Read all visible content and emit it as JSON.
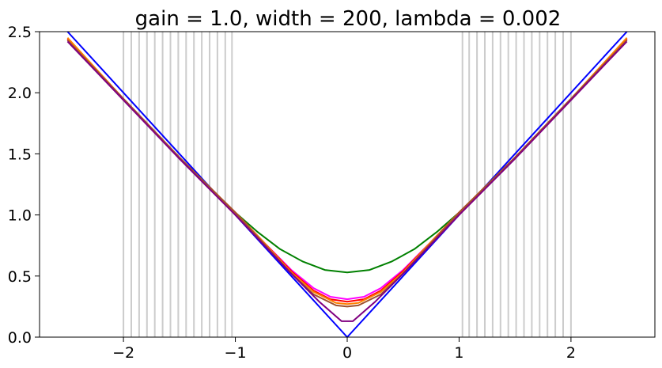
{
  "chart_data": {
    "type": "line",
    "title": "gain = 1.0, width = 200, lambda = 0.002",
    "xlabel": "",
    "ylabel": "",
    "xlim": [
      -2.75,
      2.75
    ],
    "ylim": [
      0.0,
      2.5
    ],
    "x_ticks": [
      -2,
      -1,
      0,
      1,
      2
    ],
    "x_tick_labels": [
      "−2",
      "−1",
      "0",
      "1",
      "2"
    ],
    "y_ticks": [
      0.0,
      0.5,
      1.0,
      1.5,
      2.0,
      2.5
    ],
    "y_tick_labels": [
      "0.0",
      "0.5",
      "1.0",
      "1.5",
      "2.0",
      "2.5"
    ],
    "grid": false,
    "legend": "none",
    "vertical_lines": {
      "color": "#cccccc",
      "x": [
        -2.0,
        -1.93,
        -1.86,
        -1.79,
        -1.72,
        -1.65,
        -1.58,
        -1.51,
        -1.44,
        -1.37,
        -1.3,
        -1.23,
        -1.16,
        -1.09,
        -1.03,
        1.03,
        1.09,
        1.16,
        1.23,
        1.3,
        1.37,
        1.44,
        1.51,
        1.58,
        1.65,
        1.72,
        1.79,
        1.86,
        1.93,
        2.0
      ]
    },
    "series": [
      {
        "color": "#0000ff",
        "x": [
          -2.5,
          0,
          2.5
        ],
        "y": [
          2.5,
          0.0,
          2.5
        ]
      },
      {
        "color": "#008000",
        "x": [
          -2.5,
          -2.0,
          -1.5,
          -1.0,
          -0.8,
          -0.6,
          -0.4,
          -0.2,
          0.0,
          0.2,
          0.4,
          0.6,
          0.8,
          1.0,
          1.5,
          2.0,
          2.5
        ],
        "y": [
          2.44,
          1.95,
          1.47,
          1.02,
          0.86,
          0.72,
          0.62,
          0.55,
          0.53,
          0.55,
          0.62,
          0.72,
          0.86,
          1.02,
          1.47,
          1.95,
          2.44
        ]
      },
      {
        "color": "#ff00ff",
        "x": [
          -2.5,
          -2.0,
          -1.5,
          -1.0,
          -0.75,
          -0.5,
          -0.3,
          -0.15,
          0.0,
          0.15,
          0.3,
          0.5,
          0.75,
          1.0,
          1.5,
          2.0,
          2.5
        ],
        "y": [
          2.44,
          1.95,
          1.47,
          1.02,
          0.78,
          0.55,
          0.4,
          0.33,
          0.31,
          0.33,
          0.4,
          0.55,
          0.78,
          1.02,
          1.47,
          1.95,
          2.44
        ]
      },
      {
        "color": "#ff0000",
        "x": [
          -2.5,
          -2.0,
          -1.5,
          -1.0,
          -0.75,
          -0.5,
          -0.3,
          -0.15,
          0.0,
          0.15,
          0.3,
          0.5,
          0.75,
          1.0,
          1.5,
          2.0,
          2.5
        ],
        "y": [
          2.44,
          1.95,
          1.47,
          1.02,
          0.78,
          0.54,
          0.38,
          0.31,
          0.29,
          0.31,
          0.38,
          0.54,
          0.78,
          1.02,
          1.47,
          1.95,
          2.44
        ]
      },
      {
        "color": "#ff8000",
        "x": [
          -2.5,
          -2.0,
          -1.5,
          -1.0,
          -0.75,
          -0.5,
          -0.3,
          -0.1,
          0.0,
          0.1,
          0.3,
          0.5,
          0.75,
          1.0,
          1.5,
          2.0,
          2.5
        ],
        "y": [
          2.45,
          1.95,
          1.47,
          1.02,
          0.78,
          0.53,
          0.37,
          0.28,
          0.27,
          0.28,
          0.37,
          0.53,
          0.78,
          1.02,
          1.47,
          1.95,
          2.45
        ]
      },
      {
        "color": "#a0522d",
        "x": [
          -2.5,
          -2.0,
          -1.5,
          -1.0,
          -0.75,
          -0.5,
          -0.3,
          -0.1,
          0.0,
          0.1,
          0.3,
          0.5,
          0.75,
          1.0,
          1.5,
          2.0,
          2.5
        ],
        "y": [
          2.43,
          1.95,
          1.47,
          1.02,
          0.77,
          0.52,
          0.35,
          0.26,
          0.25,
          0.26,
          0.35,
          0.52,
          0.77,
          1.02,
          1.47,
          1.95,
          2.43
        ]
      },
      {
        "color": "#800080",
        "x": [
          -2.5,
          -2.0,
          -1.5,
          -1.0,
          -0.5,
          -0.25,
          -0.05,
          0.05,
          0.25,
          0.5,
          1.0,
          1.5,
          2.0,
          2.5
        ],
        "y": [
          2.42,
          1.94,
          1.46,
          1.0,
          0.52,
          0.29,
          0.13,
          0.13,
          0.29,
          0.52,
          1.0,
          1.46,
          1.94,
          2.42
        ]
      }
    ]
  }
}
